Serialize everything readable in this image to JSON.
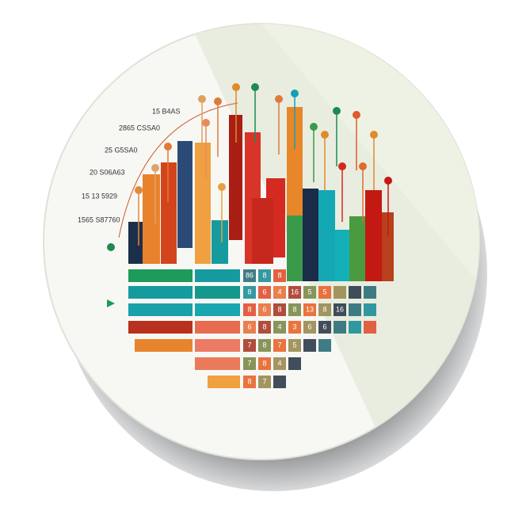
{
  "axis_labels": [
    "15 B4AS",
    "2865 CSSA0",
    "25 G5SA0",
    "20 S06A63",
    "15 13 5929",
    "1565 S87760"
  ],
  "grid_rows": [
    [
      "86",
      "8",
      "8"
    ],
    [
      "8",
      "6",
      "4",
      "16",
      "5",
      "5"
    ],
    [
      "8",
      "6",
      "8",
      "8",
      "13",
      "8",
      "16"
    ],
    [
      "6",
      "8",
      "4",
      "3",
      "6",
      "6"
    ],
    [
      "7",
      "8",
      "7",
      "5"
    ],
    [
      "7",
      "8",
      "4"
    ],
    [
      "8",
      "7"
    ]
  ]
}
